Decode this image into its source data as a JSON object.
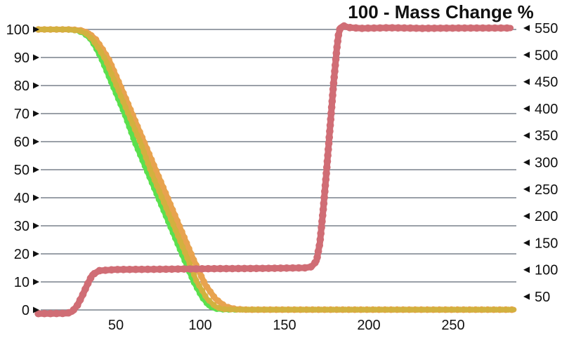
{
  "chart_data": {
    "type": "line",
    "title": "100 - Mass Change %",
    "xlabel": "",
    "ylabel_left": "",
    "ylabel_right": "",
    "legend": "none",
    "grid": "horizontal-only",
    "x_axis": {
      "range": [
        2,
        288
      ],
      "ticks": [
        50,
        100,
        150,
        200,
        250
      ]
    },
    "y_axis_left": {
      "range": [
        0,
        100
      ],
      "ticks": [
        0,
        10,
        20,
        30,
        40,
        50,
        60,
        70,
        80,
        90,
        100
      ]
    },
    "y_axis_right": {
      "range": [
        50,
        550
      ],
      "ticks": [
        50,
        100,
        150,
        200,
        250,
        300,
        350,
        400,
        450,
        500,
        550
      ]
    },
    "colors": {
      "grid": "#8b939b",
      "text": "#111111",
      "green_series": "#5ae04e",
      "yellow_series": "#d2b13f",
      "orange_series": "#e8a34f",
      "red_series": "#d06d75"
    },
    "series": [
      {
        "name": "series-green",
        "color_key": "green_series",
        "width": 7,
        "axis": "left",
        "points": [
          [
            4,
            100
          ],
          [
            12,
            100
          ],
          [
            20,
            100
          ],
          [
            27,
            99.6
          ],
          [
            31,
            98.6
          ],
          [
            35,
            96.5
          ],
          [
            38,
            93.5
          ],
          [
            41,
            90
          ],
          [
            48,
            80
          ],
          [
            55,
            70
          ],
          [
            61,
            60
          ],
          [
            68,
            50
          ],
          [
            75,
            40
          ],
          [
            82,
            30
          ],
          [
            89,
            20
          ],
          [
            96,
            10
          ],
          [
            101,
            4.5
          ],
          [
            105,
            1.5
          ],
          [
            109,
            0.4
          ],
          [
            114,
            0.1
          ],
          [
            122,
            0.1
          ]
        ]
      },
      {
        "name": "series-orange",
        "color_key": "orange_series",
        "width": 8,
        "axis": "left",
        "points": [
          [
            4,
            100
          ],
          [
            13,
            100
          ],
          [
            23,
            100
          ],
          [
            30,
            99.6
          ],
          [
            34,
            98.6
          ],
          [
            38,
            96.5
          ],
          [
            42,
            93
          ],
          [
            46,
            89
          ],
          [
            54,
            78
          ],
          [
            61,
            68
          ],
          [
            68,
            58
          ],
          [
            75,
            48
          ],
          [
            82,
            38
          ],
          [
            89,
            28
          ],
          [
            96,
            18
          ],
          [
            103,
            9
          ],
          [
            109,
            4
          ],
          [
            115,
            1.2
          ],
          [
            121,
            0.3
          ],
          [
            128,
            0.1
          ],
          [
            286,
            0.1
          ]
        ]
      },
      {
        "name": "series-yellow",
        "color_key": "yellow_series",
        "width": 7,
        "axis": "left",
        "points": [
          [
            4,
            100
          ],
          [
            12,
            100
          ],
          [
            21,
            100
          ],
          [
            28,
            99.6
          ],
          [
            32,
            98.6
          ],
          [
            36,
            96.5
          ],
          [
            40,
            93
          ],
          [
            44,
            89
          ],
          [
            51,
            79
          ],
          [
            58,
            69
          ],
          [
            65,
            59
          ],
          [
            71,
            49
          ],
          [
            78,
            39
          ],
          [
            85,
            29
          ],
          [
            92,
            19
          ],
          [
            98,
            10
          ],
          [
            104,
            4
          ],
          [
            109,
            1.2
          ],
          [
            113,
            0.3
          ],
          [
            120,
            0.1
          ],
          [
            286,
            0.1
          ]
        ]
      },
      {
        "name": "series-red",
        "color_key": "red_series",
        "width": 9,
        "axis": "left",
        "points": [
          [
            4,
            -1.3
          ],
          [
            12,
            -1.3
          ],
          [
            21,
            -1.2
          ],
          [
            24,
            -0.6
          ],
          [
            27,
            1.5
          ],
          [
            30,
            5
          ],
          [
            33,
            9
          ],
          [
            36,
            12.5
          ],
          [
            40,
            14
          ],
          [
            50,
            14.4
          ],
          [
            75,
            14.5
          ],
          [
            105,
            14.7
          ],
          [
            135,
            14.8
          ],
          [
            162,
            15
          ],
          [
            166,
            15.4
          ],
          [
            169,
            17.5
          ],
          [
            171,
            24
          ],
          [
            173,
            36
          ],
          [
            175,
            50
          ],
          [
            177,
            65
          ],
          [
            179,
            80
          ],
          [
            181,
            93
          ],
          [
            182,
            98
          ],
          [
            183,
            100.5
          ],
          [
            185,
            101.3
          ],
          [
            188,
            100.7
          ],
          [
            196,
            100.4
          ],
          [
            212,
            100.6
          ],
          [
            232,
            100.4
          ],
          [
            258,
            100.5
          ],
          [
            284,
            100.5
          ]
        ]
      }
    ]
  }
}
